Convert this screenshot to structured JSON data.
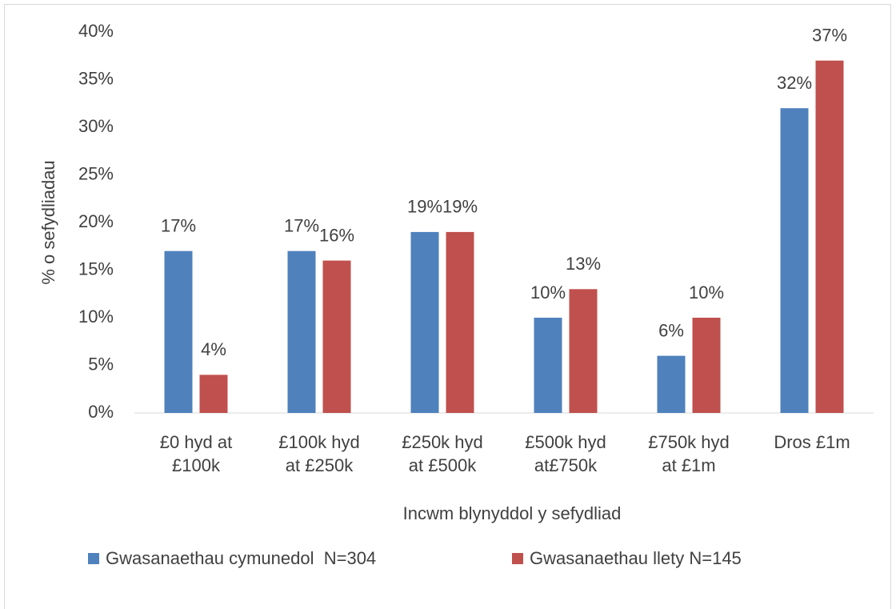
{
  "chart_data": {
    "type": "bar",
    "y_label": "% o sefydliadau",
    "x_label": "Incwm blynyddol y sefydliad",
    "categories": [
      "£0 hyd at £100k",
      "£100k hyd at £250k",
      "£250k hyd at £500k",
      "£500k hyd at£750k",
      "£750k hyd at £1m",
      "Dros £1m"
    ],
    "series": [
      {
        "name": "Gwasanaethau cymunedol  N=304",
        "color": "#4f81bd",
        "values": [
          17,
          17,
          19,
          10,
          6,
          32
        ],
        "value_labels": [
          "17%",
          "17%",
          "19%",
          "10%",
          "6%",
          "32%"
        ]
      },
      {
        "name": "Gwasanaethau llety N=145",
        "color": "#c0504d",
        "values": [
          4,
          16,
          19,
          13,
          10,
          37
        ],
        "value_labels": [
          "4%",
          "16%",
          "19%",
          "13%",
          "10%",
          "37%"
        ]
      }
    ],
    "ylim": [
      0,
      40
    ],
    "yticks": [
      {
        "value": 0,
        "label": "0%"
      },
      {
        "value": 5,
        "label": "5%"
      },
      {
        "value": 10,
        "label": "10%"
      },
      {
        "value": 15,
        "label": "15%"
      },
      {
        "value": 20,
        "label": "20%"
      },
      {
        "value": 25,
        "label": "25%"
      },
      {
        "value": 30,
        "label": "30%"
      },
      {
        "value": 35,
        "label": "35%"
      },
      {
        "value": 40,
        "label": "40%"
      }
    ],
    "legend": "bottom"
  }
}
